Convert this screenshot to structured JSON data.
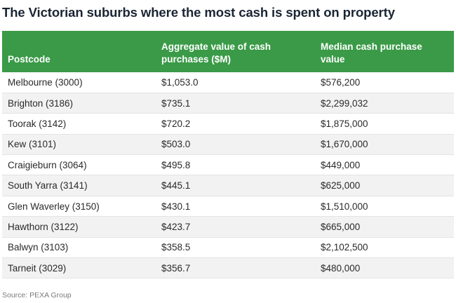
{
  "title": "The Victorian suburbs where the most cash is spent on property",
  "columns": [
    "Postcode",
    "Aggregate value of cash purchases ($M)",
    "Median cash purchase value"
  ],
  "rows": [
    [
      "Melbourne (3000)",
      "$1,053.0",
      "$576,200"
    ],
    [
      "Brighton (3186)",
      "$735.1",
      "$2,299,032"
    ],
    [
      "Toorak (3142)",
      "$720.2",
      "$1,875,000"
    ],
    [
      "Kew (3101)",
      "$503.0",
      "$1,670,000"
    ],
    [
      "Craigieburn (3064)",
      "$495.8",
      "$449,000"
    ],
    [
      "South Yarra (3141)",
      "$445.1",
      "$625,000"
    ],
    [
      "Glen Waverley (3150)",
      "$430.1",
      "$1,510,000"
    ],
    [
      "Hawthorn (3122)",
      "$423.7",
      "$665,000"
    ],
    [
      "Balwyn (3103)",
      "$358.5",
      "$2,102,500"
    ],
    [
      "Tarneit (3029)",
      "$356.7",
      "$480,000"
    ]
  ],
  "source": "Source: PEXA Group",
  "colors": {
    "header_background": "#3a9a47",
    "header_text": "#ffffff",
    "title_text": "#1a2533",
    "stripe": "#f2f2f2"
  }
}
